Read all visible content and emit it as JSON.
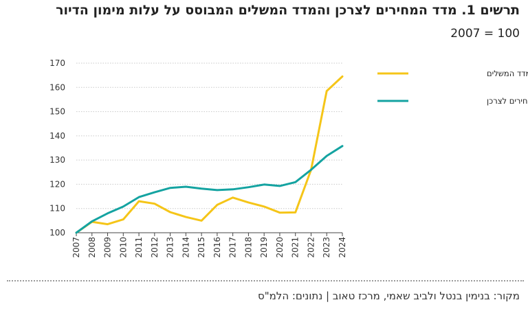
{
  "header": {
    "title": "תרשים 1. מדד המחירים לצרכן והמדד המשלים המבוסס על עלות מימון הדיור",
    "subtitle": "2007 = 100"
  },
  "footer": {
    "source": "מקור: בנימין בנטל ולביב שאמי, מרכז טאוב | נתונים: הלמ\"ס"
  },
  "chart_data": {
    "type": "line",
    "title": "תרשים 1. מדד המחירים לצרכן והמדד המשלים המבוסס על עלות מימון הדיור",
    "subtitle": "2007 = 100",
    "xlabel": "",
    "ylabel": "",
    "x": [
      "2007",
      "2008",
      "2009",
      "2010",
      "2011",
      "2012",
      "2013",
      "2014",
      "2015",
      "2016",
      "2017",
      "2018",
      "2019",
      "2020",
      "2021",
      "2022",
      "2023",
      "2024"
    ],
    "ylim": [
      100,
      170
    ],
    "yticks": [
      100,
      110,
      120,
      130,
      140,
      150,
      160,
      170
    ],
    "grid": "horizontal dotted",
    "legend_position": "top-right",
    "series": [
      {
        "name": "המדד המשלים",
        "color": "#f5c518",
        "values": [
          100,
          104.5,
          103.5,
          105.5,
          113,
          112,
          108.5,
          106.5,
          105,
          111.5,
          114.5,
          112.5,
          110.8,
          108.3,
          108.4,
          126,
          158.5,
          164.5
        ]
      },
      {
        "name": "מדד המחירים לצרכן",
        "color": "#14a3a1",
        "values": [
          100,
          104.7,
          108,
          110.8,
          114.7,
          116.7,
          118.5,
          119,
          118.2,
          117.6,
          117.9,
          118.8,
          119.9,
          119.3,
          120.9,
          126,
          131.7,
          135.8
        ]
      }
    ]
  }
}
